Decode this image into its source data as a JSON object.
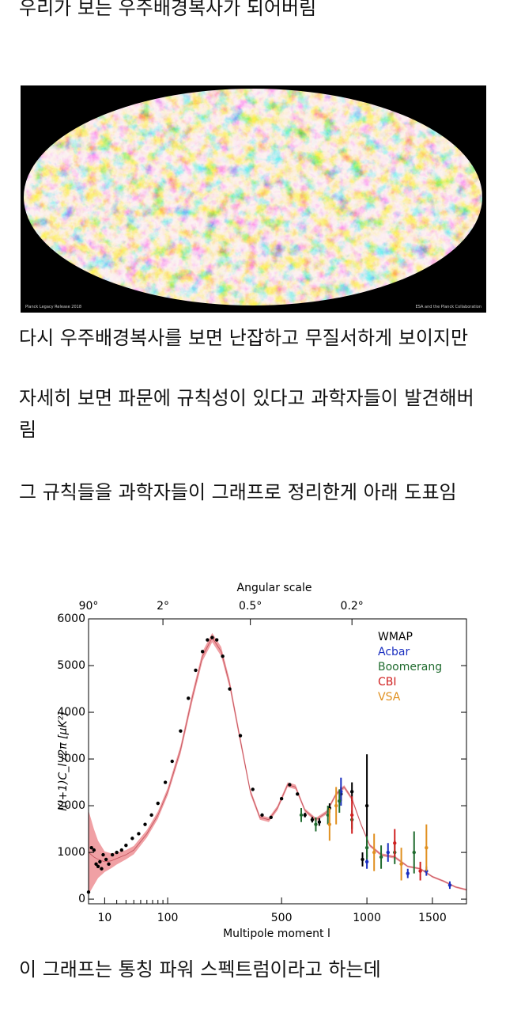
{
  "post": {
    "paragraphs": [
      "우리가 보는 우주배경복사가 되어버림",
      "다시 우주배경복사를 보면 난잡하고 무질서하게 보이지만",
      "자세히 보면 파문에 규칙성이 있다고 과학자들이 발견해버림",
      "그 규칙들을 과학자들이 그래프로 정리한게 아래 도표임",
      "이 그래프는 통칭 파워 스펙트럼이라고 하는데"
    ],
    "image": {
      "caption_left": "Planck Legacy Release 2018",
      "caption_right": "ESA and the Planck Collaboration"
    }
  },
  "chart_data": {
    "type": "scatter",
    "top_axis_label": "Angular scale",
    "xlabel": "Multipole moment l",
    "ylabel": "l(l+1)C_l /2π [μK²]",
    "xscale": "sqrt",
    "xlim": [
      2,
      1800
    ],
    "ylim": [
      -100,
      6000
    ],
    "xticks": [
      10,
      100,
      500,
      1000,
      1500
    ],
    "xminorticks": [
      20,
      30,
      40,
      50,
      60,
      70,
      80,
      90
    ],
    "top_ticks": [
      {
        "value": 2,
        "label": "90°"
      },
      {
        "value": 90,
        "label": "2°"
      },
      {
        "value": 360,
        "label": "0.5°"
      },
      {
        "value": 900,
        "label": "0.2°"
      }
    ],
    "yticks": [
      0,
      1000,
      2000,
      3000,
      4000,
      5000,
      6000
    ],
    "legend": "top-right",
    "model": {
      "color": "#c0505a",
      "band_color": "#f0a0a4",
      "x": [
        2,
        4,
        6,
        10,
        15,
        20,
        30,
        40,
        60,
        80,
        100,
        130,
        160,
        190,
        220,
        250,
        280,
        320,
        360,
        400,
        440,
        480,
        530,
        570,
        620,
        680,
        740,
        800,
        850,
        900,
        960,
        1020,
        1100,
        1200,
        1300,
        1400,
        1500,
        1600,
        1700,
        1800
      ],
      "values": [
        1000,
        900,
        850,
        800,
        820,
        870,
        950,
        1050,
        1400,
        1800,
        2300,
        3200,
        4300,
        5200,
        5600,
        5300,
        4600,
        3400,
        2300,
        1750,
        1700,
        1950,
        2450,
        2400,
        1900,
        1700,
        1850,
        2250,
        2400,
        2150,
        1600,
        1150,
        950,
        900,
        700,
        650,
        480,
        380,
        260,
        200
      ],
      "spread": [
        900,
        600,
        400,
        220,
        160,
        130,
        100,
        90,
        80,
        80,
        80,
        90,
        100,
        100,
        100,
        100,
        90,
        80,
        60,
        50,
        50,
        50,
        50,
        50,
        40,
        40,
        40,
        40,
        40,
        40,
        30,
        30,
        30,
        30,
        20,
        20,
        20,
        20,
        20,
        20
      ]
    },
    "series": [
      {
        "name": "WMAP",
        "color": "#000000",
        "x": [
          2,
          3,
          4,
          5,
          6,
          7,
          8,
          9,
          11,
          13,
          16,
          20,
          25,
          30,
          38,
          47,
          57,
          68,
          80,
          95,
          110,
          130,
          150,
          170,
          190,
          205,
          220,
          235,
          255,
          280,
          320,
          370,
          410,
          450,
          500,
          540,
          580,
          620,
          660,
          700,
          760,
          830,
          900,
          970,
          1000
        ],
        "values": [
          150,
          1100,
          1050,
          750,
          700,
          800,
          650,
          950,
          850,
          750,
          950,
          1000,
          1050,
          1150,
          1300,
          1400,
          1600,
          1800,
          2050,
          2500,
          2950,
          3600,
          4300,
          4900,
          5300,
          5550,
          5600,
          5550,
          5200,
          4500,
          3500,
          2350,
          1800,
          1750,
          2150,
          2450,
          2250,
          1800,
          1700,
          1650,
          1950,
          2250,
          2300,
          850,
          2000
        ],
        "errors": [
          0,
          0,
          0,
          0,
          0,
          0,
          0,
          0,
          0,
          0,
          0,
          0,
          0,
          0,
          0,
          0,
          0,
          0,
          0,
          0,
          0,
          0,
          0,
          0,
          0,
          0,
          0,
          0,
          0,
          0,
          0,
          0,
          0,
          0,
          0,
          0,
          0,
          50,
          60,
          80,
          100,
          150,
          200,
          150,
          1100
        ]
      },
      {
        "name": "Acbar",
        "color": "#1a2fc0",
        "x": [
          830,
          1000,
          1150,
          1300,
          1450,
          1650
        ],
        "values": [
          2300,
          800,
          1000,
          550,
          600,
          300
        ],
        "errors": [
          300,
          150,
          200,
          100,
          100,
          80
        ]
      },
      {
        "name": "Boomerang",
        "color": "#1f6b2e",
        "x": [
          600,
          680,
          750,
          820,
          900,
          1000,
          1100,
          1200,
          1350
        ],
        "values": [
          1800,
          1600,
          1800,
          2100,
          1700,
          1100,
          900,
          1000,
          1000
        ],
        "errors": [
          150,
          150,
          200,
          250,
          200,
          250,
          250,
          250,
          450
        ]
      },
      {
        "name": "CBI",
        "color": "#d02020",
        "x": [
          900,
          1200,
          1400
        ],
        "values": [
          1800,
          1200,
          600
        ],
        "errors": [
          400,
          300,
          200
        ]
      },
      {
        "name": "VSA",
        "color": "#e09020",
        "x": [
          760,
          800,
          1050,
          1250,
          1450
        ],
        "values": [
          1600,
          2000,
          1000,
          750,
          1100
        ],
        "errors": [
          350,
          400,
          400,
          350,
          500
        ]
      }
    ]
  }
}
